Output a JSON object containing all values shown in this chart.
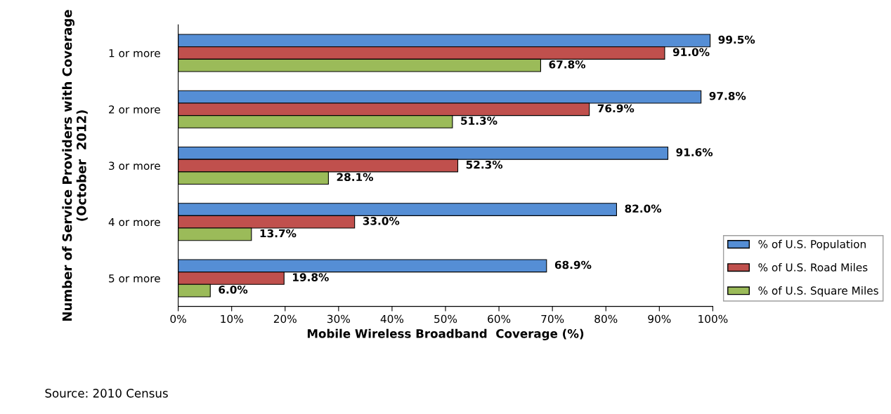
{
  "chart_data": {
    "type": "bar",
    "orientation": "horizontal",
    "xlabel": "Mobile Wireless Broadband  Coverage (%)",
    "ylabel": "Number of Service Providers with Coverage\n(October  2012)",
    "categories": [
      "1 or more",
      "2 or more",
      "3 or more",
      "4 or more",
      "5 or more"
    ],
    "series": [
      {
        "name": "% of U.S. Population",
        "color": "#558ed5",
        "values": [
          99.5,
          97.8,
          91.6,
          82.0,
          68.9
        ],
        "value_labels": [
          "99.5%",
          "97.8%",
          "91.6%",
          "82.0%",
          "68.9%"
        ]
      },
      {
        "name": "% of U.S. Road Miles",
        "color": "#c0504d",
        "values": [
          91.0,
          76.9,
          52.3,
          33.0,
          19.8
        ],
        "value_labels": [
          "91.0%",
          "76.9%",
          "52.3%",
          "33.0%",
          "19.8%"
        ]
      },
      {
        "name": "% of U.S. Square Miles",
        "color": "#9bbb59",
        "values": [
          67.8,
          51.3,
          28.1,
          13.7,
          6.0
        ],
        "value_labels": [
          "67.8%",
          "51.3%",
          "28.1%",
          "13.7%",
          "6.0%"
        ]
      }
    ],
    "xlim": [
      0,
      100
    ],
    "xticks": [
      {
        "value": 0,
        "label": "0%"
      },
      {
        "value": 10,
        "label": "10%"
      },
      {
        "value": 20,
        "label": "20%"
      },
      {
        "value": 30,
        "label": "30%"
      },
      {
        "value": 40,
        "label": "40%"
      },
      {
        "value": 50,
        "label": "50%"
      },
      {
        "value": 60,
        "label": "60%"
      },
      {
        "value": 70,
        "label": "70%"
      },
      {
        "value": 80,
        "label": "80%"
      },
      {
        "value": 90,
        "label": "90%"
      },
      {
        "value": 100,
        "label": "100%"
      }
    ],
    "grid": false,
    "legend": "right",
    "annotations": [
      "Source: 2010 Census"
    ]
  }
}
